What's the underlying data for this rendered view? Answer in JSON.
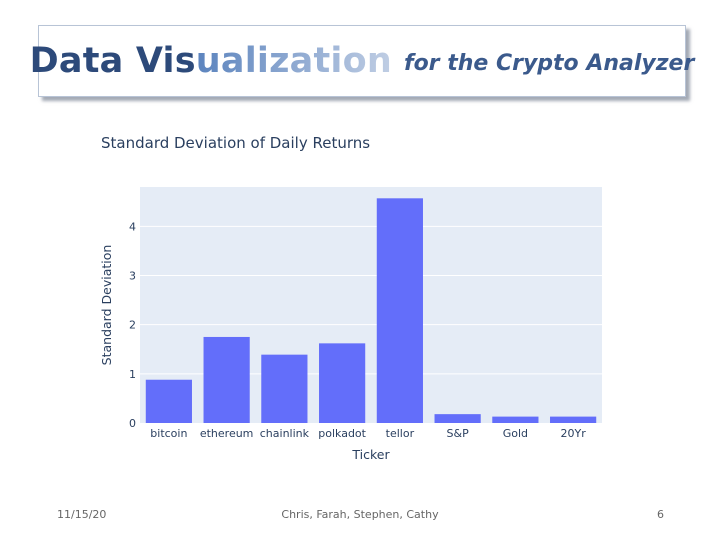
{
  "slide": {
    "title_part1": "Data Vis",
    "title_part2": "ualization",
    "title_part3": "for the Crypto Analyzer",
    "footer_date": "11/15/20",
    "footer_authors": "Chris, Farah, Stephen, Cathy",
    "page_number": "6"
  },
  "colors": {
    "title_dark": "#2d4a7a",
    "title_grad_start": "#5c84be",
    "title_grad_end": "#c0cee4",
    "bar": "#636efa",
    "plot_bg": "#e5ecf6",
    "text": "#2a3f5f"
  },
  "chart_data": {
    "type": "bar",
    "title": "Standard Deviation of Daily Returns",
    "xlabel": "Ticker",
    "ylabel": "Standard Deviation",
    "categories": [
      "bitcoin",
      "ethereum",
      "chainlink",
      "polkadot",
      "tellor",
      "S&P",
      "Gold",
      "20Yr"
    ],
    "values": [
      0.88,
      1.75,
      1.39,
      1.62,
      4.57,
      0.18,
      0.13,
      0.13
    ],
    "ylim": [
      0,
      4.8
    ],
    "yticks": [
      0,
      1,
      2,
      3,
      4
    ],
    "grid": true,
    "legend": "none"
  }
}
